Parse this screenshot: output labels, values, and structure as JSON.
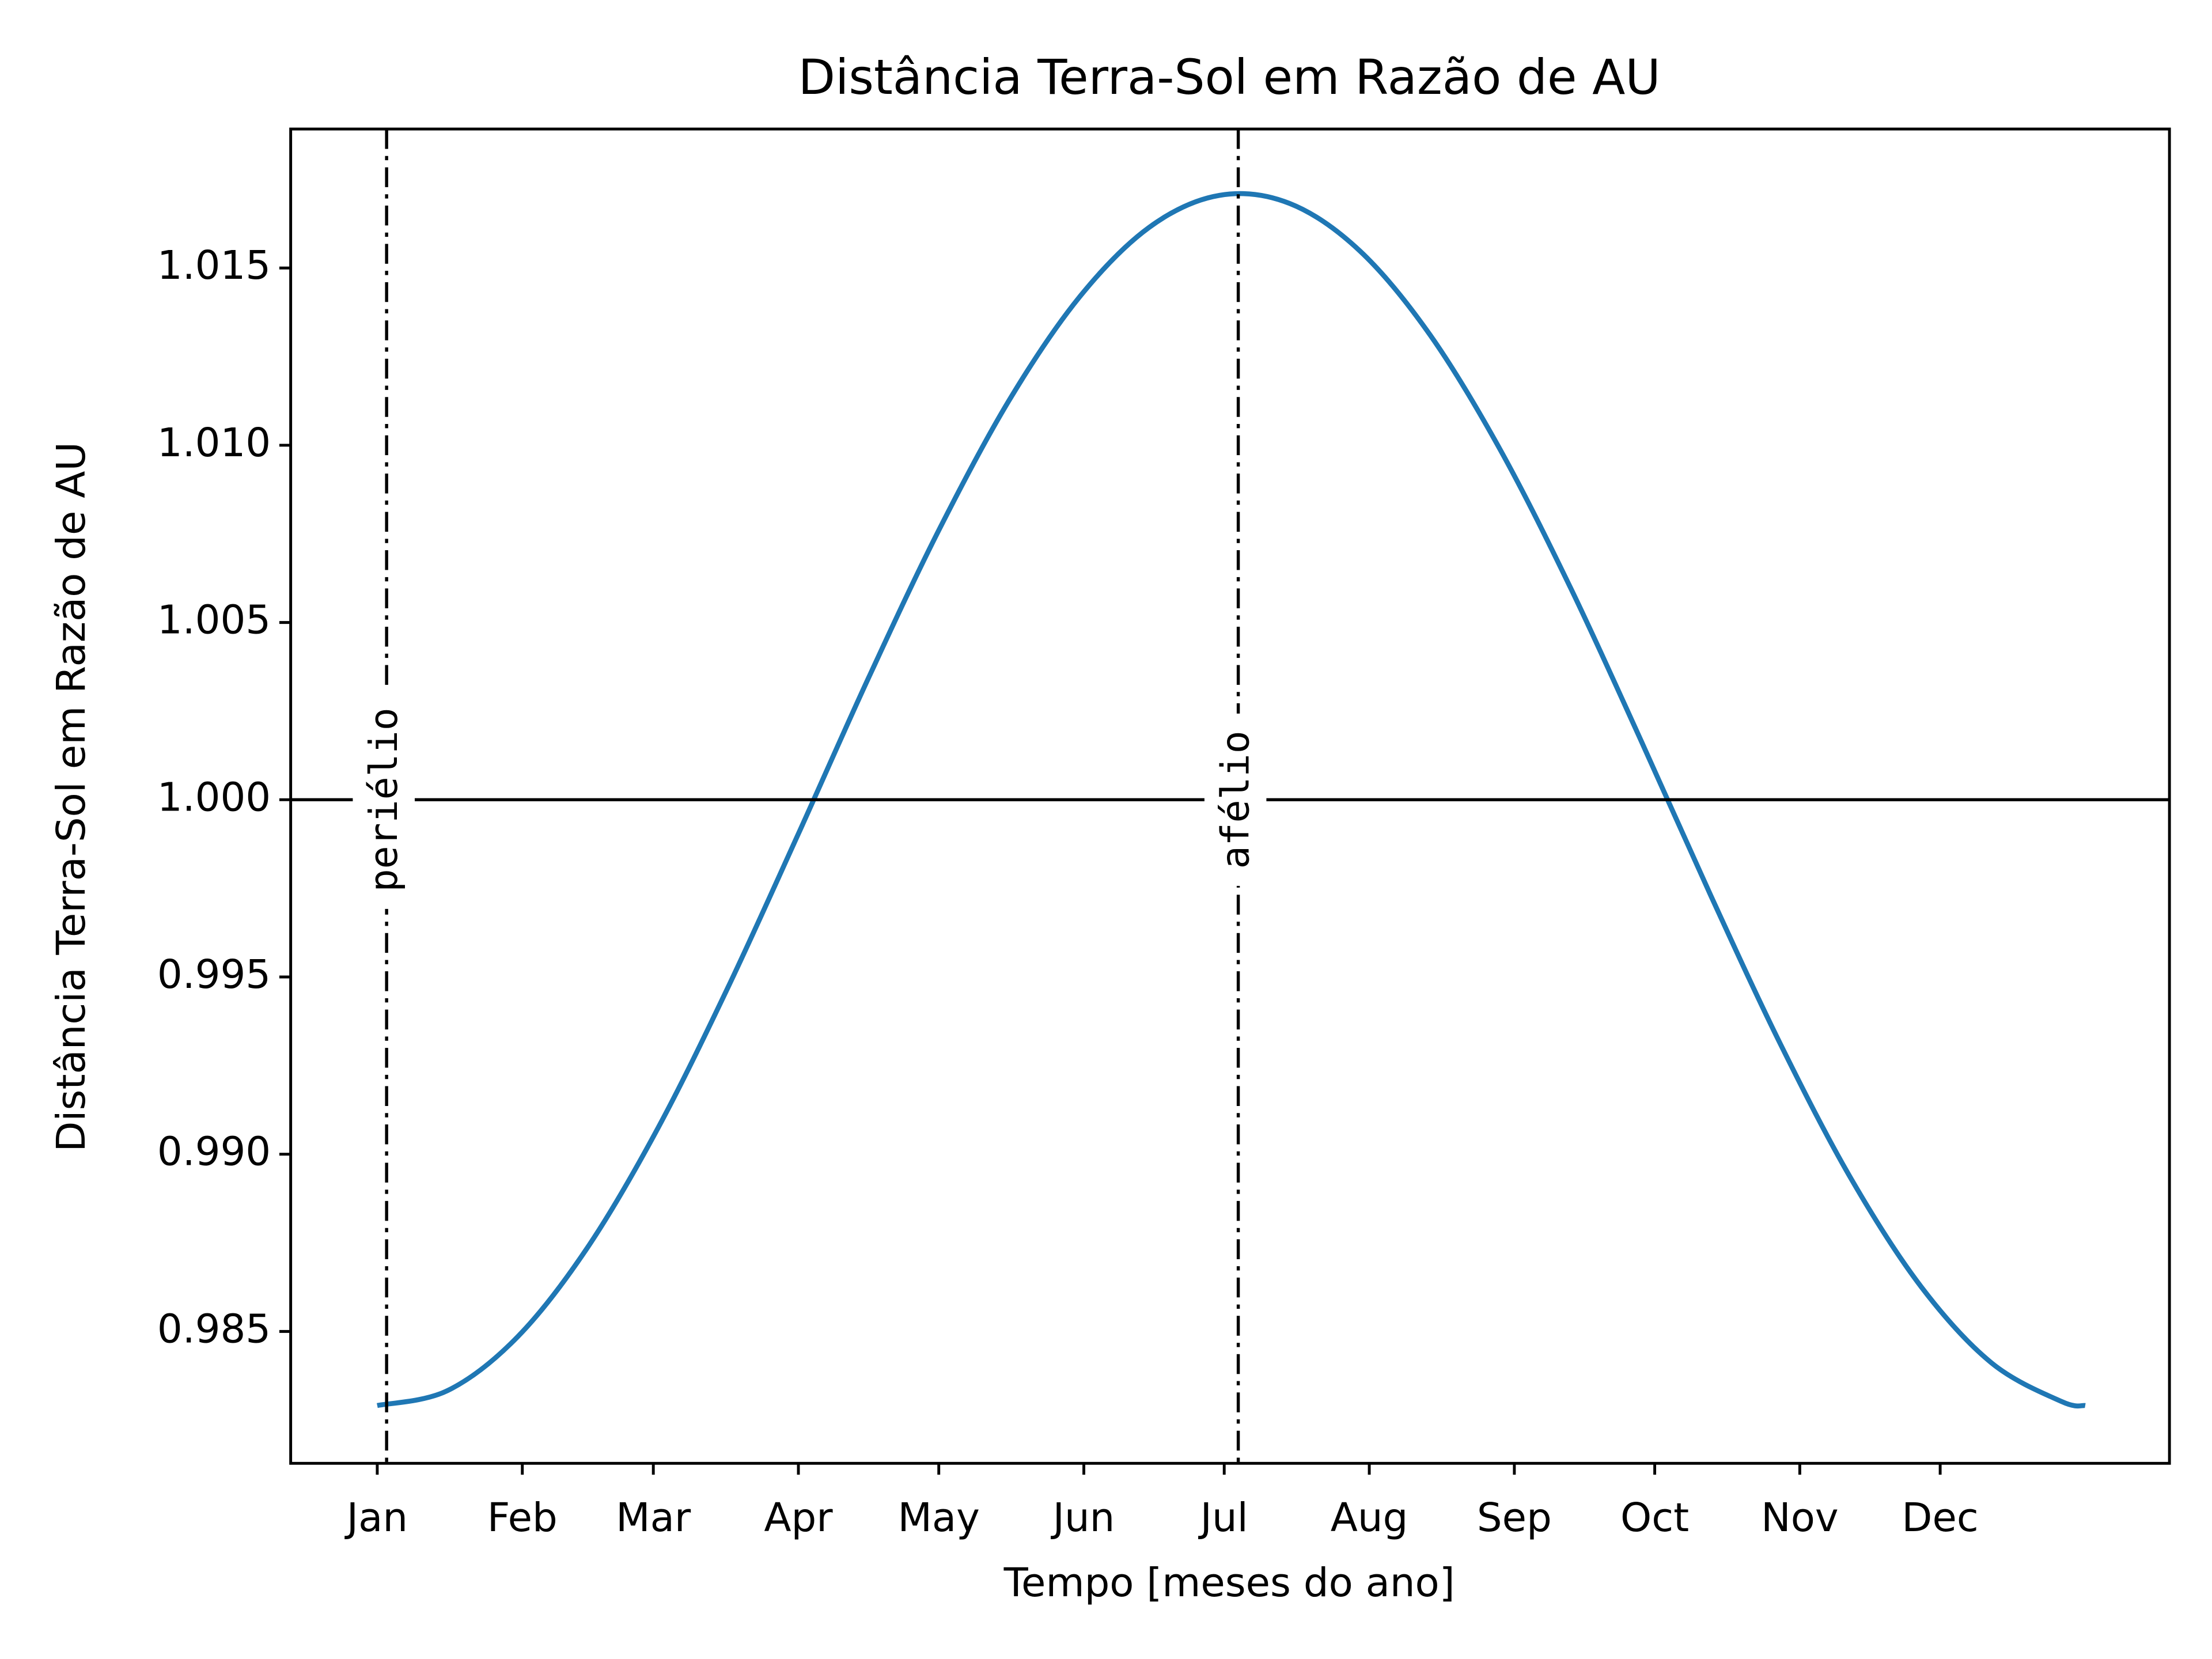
{
  "chart_data": {
    "type": "line",
    "title": "Distância Terra-Sol em Razão de AU",
    "xlabel": "Tempo [meses do ano]",
    "ylabel": "Distância Terra-Sol em Razão de AU",
    "x": [
      0,
      15,
      30,
      45,
      60,
      75,
      90,
      105,
      120,
      135,
      150,
      165,
      180,
      195,
      210,
      225,
      240,
      255,
      270,
      285,
      300,
      315,
      330,
      345,
      360,
      365
    ],
    "values": [
      0.98291,
      0.98333,
      0.98485,
      0.98738,
      0.99074,
      0.99472,
      0.99904,
      1.00344,
      1.0076,
      1.01126,
      1.01417,
      1.01615,
      1.01705,
      1.01682,
      1.01548,
      1.01311,
      1.00987,
      1.00598,
      1.00169,
      0.99729,
      0.99307,
      0.9893,
      0.98625,
      0.98411,
      0.98302,
      0.98291
    ],
    "color": "#1f77b4",
    "xlim": [
      -18.5,
      383
    ],
    "xticks": [
      {
        "value": 0,
        "label": "Jan"
      },
      {
        "value": 31,
        "label": "Feb"
      },
      {
        "value": 59,
        "label": "Mar"
      },
      {
        "value": 90,
        "label": "Apr"
      },
      {
        "value": 120,
        "label": "May"
      },
      {
        "value": 151,
        "label": "Jun"
      },
      {
        "value": 181,
        "label": "Jul"
      },
      {
        "value": 212,
        "label": "Aug"
      },
      {
        "value": 243,
        "label": "Sep"
      },
      {
        "value": 273,
        "label": "Oct"
      },
      {
        "value": 304,
        "label": "Nov"
      },
      {
        "value": 334,
        "label": "Dec"
      }
    ],
    "ylim": [
      0.98128,
      1.01892
    ],
    "yticks": [
      {
        "value": 0.985,
        "label": "0.985"
      },
      {
        "value": 0.99,
        "label": "0.990"
      },
      {
        "value": 0.995,
        "label": "0.995"
      },
      {
        "value": 1,
        "label": "1.000"
      },
      {
        "value": 1.005,
        "label": "1.005"
      },
      {
        "value": 1.01,
        "label": "1.010"
      },
      {
        "value": 1.015,
        "label": "1.015"
      }
    ],
    "hline": 1,
    "annotations": [
      {
        "text": "periélio",
        "x": 2
      },
      {
        "text": "afélio",
        "x": 184
      }
    ]
  }
}
